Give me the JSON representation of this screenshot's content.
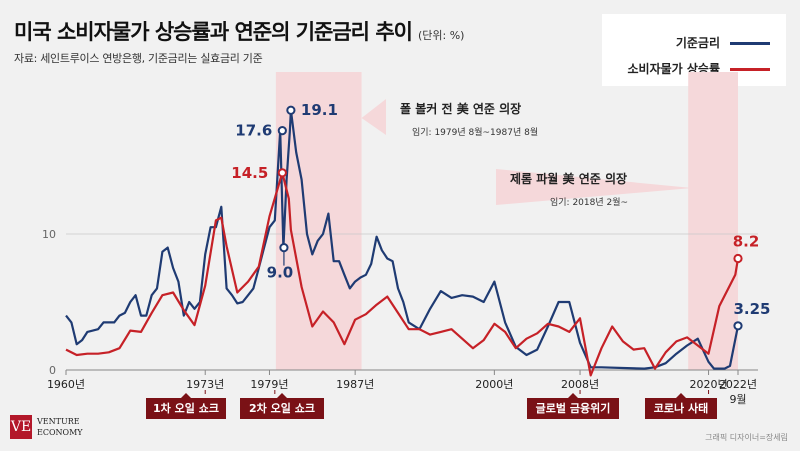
{
  "title": "미국 소비자물가 상승률과 연준의 기준금리 추이",
  "unit": "(단위: %)",
  "source": "자료: 세인트루이스 연방은행, 기준금리는 실효금리 기준",
  "credit": "그래픽 디자이너=장세림",
  "logo": {
    "mark": "VE",
    "line1": "VENTURE",
    "line2": "ECONOMY"
  },
  "colors": {
    "rate": "#1f3b73",
    "cpi": "#c62127",
    "shade": "#f5d8da",
    "event_bg": "#7a1116"
  },
  "legend": [
    {
      "label": "기준금리",
      "color": "#1f3b73"
    },
    {
      "label": "소비자물가 상승률",
      "color": "#c62127"
    }
  ],
  "events": [
    {
      "label": "1차 오일 쇼크"
    },
    {
      "label": "2차 오일 쇼크"
    },
    {
      "label": "글로벌 금융위기"
    },
    {
      "label": "코로나 사태"
    }
  ],
  "chart_data": {
    "type": "line",
    "xlim": [
      1960,
      2022.75
    ],
    "ylim": [
      0,
      20
    ],
    "yticks": [
      0,
      10
    ],
    "xtick_labels": [
      {
        "x": 1960,
        "label": "1960년"
      },
      {
        "x": 1973,
        "label": "1973년"
      },
      {
        "x": 1979,
        "label": "1979년"
      },
      {
        "x": 1987,
        "label": "1987년"
      },
      {
        "x": 2000,
        "label": "2000년"
      },
      {
        "x": 2008,
        "label": "2008년"
      },
      {
        "x": 2020,
        "label": "2020년"
      },
      {
        "x": 2022.75,
        "label": "2022년 9월"
      }
    ],
    "shaded_periods": [
      {
        "start": 1979.6,
        "end": 1987.6,
        "title": "폴 볼커 전 美 연준 의장",
        "subtitle": "임기: 1979년 8월~1987년 8월"
      },
      {
        "start": 2018.1,
        "end": 2022.75,
        "title": "제롬 파월 美 연준 의장",
        "subtitle": "임기: 2018년 2월~"
      }
    ],
    "series": [
      {
        "name": "기준금리",
        "x": [
          1960,
          1960.5,
          1961,
          1961.5,
          1962,
          1962.5,
          1963,
          1963.5,
          1964,
          1964.5,
          1965,
          1965.5,
          1966,
          1966.5,
          1967,
          1967.5,
          1968,
          1968.5,
          1969,
          1969.5,
          1970,
          1970.5,
          1971,
          1971.5,
          1972,
          1972.5,
          1973,
          1973.5,
          1974,
          1974.5,
          1975,
          1975.5,
          1976,
          1976.5,
          1977,
          1977.5,
          1978,
          1978.5,
          1979,
          1979.5,
          1980,
          1980.3,
          1980.6,
          1980.9,
          1981,
          1981.5,
          1982,
          1982.5,
          1983,
          1983.5,
          1984,
          1984.5,
          1985,
          1985.5,
          1986,
          1986.5,
          1987,
          1987.5,
          1988,
          1988.5,
          1989,
          1989.5,
          1990,
          1990.5,
          1991,
          1991.5,
          1992,
          1993,
          1994,
          1995,
          1996,
          1997,
          1998,
          1999,
          2000,
          2001,
          2002,
          2003,
          2004,
          2005,
          2006,
          2007,
          2008,
          2009,
          2010,
          2012,
          2014,
          2015,
          2016,
          2017,
          2018,
          2019,
          2020,
          2020.5,
          2021,
          2021.5,
          2022,
          2022.75
        ],
        "values": [
          4.0,
          3.5,
          1.9,
          2.2,
          2.8,
          2.9,
          3.0,
          3.5,
          3.5,
          3.5,
          4.0,
          4.2,
          5.0,
          5.5,
          4.0,
          4.0,
          5.5,
          6.0,
          8.7,
          9.0,
          7.5,
          6.5,
          4.0,
          5.0,
          4.5,
          5.0,
          8.5,
          10.5,
          10.5,
          12.0,
          6.0,
          5.5,
          4.9,
          5.0,
          5.5,
          6.0,
          7.5,
          9.0,
          10.5,
          11.0,
          17.6,
          9.0,
          14.0,
          17.5,
          19.1,
          16.0,
          14.0,
          10.0,
          8.5,
          9.5,
          10.0,
          11.5,
          8.0,
          8.0,
          7.0,
          6.0,
          6.5,
          6.8,
          7.0,
          7.8,
          9.8,
          8.8,
          8.2,
          8.0,
          6.0,
          5.0,
          3.5,
          3.0,
          4.5,
          5.8,
          5.3,
          5.5,
          5.4,
          5.0,
          6.5,
          3.5,
          1.7,
          1.1,
          1.5,
          3.2,
          5.0,
          5.0,
          2.0,
          0.2,
          0.2,
          0.15,
          0.1,
          0.2,
          0.5,
          1.2,
          1.8,
          2.3,
          0.6,
          0.1,
          0.1,
          0.1,
          0.3,
          3.25
        ]
      },
      {
        "name": "소비자물가 상승률",
        "x": [
          1960,
          1961,
          1962,
          1963,
          1964,
          1965,
          1966,
          1967,
          1968,
          1969,
          1970,
          1971,
          1972,
          1973,
          1974,
          1974.5,
          1975,
          1976,
          1977,
          1978,
          1979,
          1980.2,
          1980.8,
          1981,
          1982,
          1983,
          1984,
          1985,
          1986,
          1987,
          1988,
          1989,
          1990,
          1991,
          1992,
          1993,
          1994,
          1995,
          1996,
          1997,
          1998,
          1999,
          2000,
          2001,
          2002,
          2003,
          2004,
          2005,
          2006,
          2007,
          2008,
          2009,
          2010,
          2011,
          2012,
          2013,
          2014,
          2015,
          2016,
          2017,
          2018,
          2019,
          2020,
          2021,
          2022.5,
          2022.75
        ],
        "values": [
          1.5,
          1.1,
          1.2,
          1.2,
          1.3,
          1.6,
          2.9,
          2.8,
          4.2,
          5.5,
          5.7,
          4.4,
          3.3,
          6.2,
          11.0,
          11.2,
          9.1,
          5.7,
          6.5,
          7.6,
          11.3,
          14.5,
          12.6,
          10.3,
          6.1,
          3.2,
          4.3,
          3.5,
          1.9,
          3.7,
          4.1,
          4.8,
          5.4,
          4.2,
          3.0,
          3.0,
          2.6,
          2.8,
          3.0,
          2.3,
          1.6,
          2.2,
          3.4,
          2.8,
          1.6,
          2.3,
          2.7,
          3.4,
          3.2,
          2.8,
          3.8,
          -0.4,
          1.6,
          3.2,
          2.1,
          1.5,
          1.6,
          0.1,
          1.3,
          2.1,
          2.4,
          1.8,
          1.2,
          4.7,
          7.0,
          8.2
        ]
      }
    ],
    "annotations": [
      {
        "series": "기준금리",
        "x": 1980.2,
        "y": 17.6,
        "label": "17.6"
      },
      {
        "series": "기준금리",
        "x": 1981.0,
        "y": 19.1,
        "label": "19.1"
      },
      {
        "series": "기준금리",
        "x": 1980.35,
        "y": 9.0,
        "label": "9.0"
      },
      {
        "series": "소비자물가 상승률",
        "x": 1980.2,
        "y": 14.5,
        "label": "14.5"
      },
      {
        "series": "소비자물가 상승률",
        "x": 2022.75,
        "y": 8.2,
        "label": "8.2"
      },
      {
        "series": "기준금리",
        "x": 2022.75,
        "y": 3.25,
        "label": "3.25"
      }
    ]
  }
}
